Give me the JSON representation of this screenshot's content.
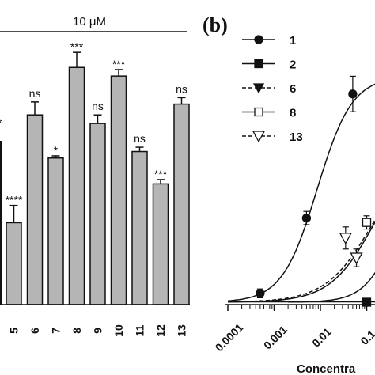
{
  "chart_data": [
    {
      "type": "bar",
      "header": "10 μM",
      "categories": [
        "5",
        "6",
        "7",
        "8",
        "9",
        "10",
        "11",
        "12",
        "13"
      ],
      "values": [
        38,
        88,
        68,
        110,
        84,
        106,
        71,
        56,
        93
      ],
      "errors": [
        8,
        6,
        1,
        7,
        4,
        3,
        2,
        2,
        3
      ],
      "significance": [
        "****",
        "ns",
        "*",
        "***",
        "ns",
        "***",
        "ns",
        "***",
        "ns"
      ],
      "truncated_label": "*",
      "ylim": [
        0,
        120
      ],
      "bar_color": "#b5b5b5"
    },
    {
      "type": "line",
      "panel_label": "(b)",
      "xscale": "log",
      "xlim": [
        0.0001,
        0.2
      ],
      "xticks": [
        "0.0001",
        "0.001",
        "0.01",
        "0.1"
      ],
      "xlabel": "Concentra",
      "ylim": [
        0,
        100
      ],
      "legend": {
        "placement": "top-right",
        "entries": [
          {
            "label": "1",
            "marker": "circle-filled",
            "line": "solid"
          },
          {
            "label": "2",
            "marker": "square-filled",
            "line": "solid"
          },
          {
            "label": "6",
            "marker": "triangle-down-filled",
            "line": "dashed"
          },
          {
            "label": "8",
            "marker": "square-open",
            "line": "solid"
          },
          {
            "label": "13",
            "marker": "triangle-down-open",
            "line": "dashed"
          }
        ]
      },
      "series": [
        {
          "name": "1",
          "x": [
            0.0005,
            0.005,
            0.05
          ],
          "y": [
            4,
            38,
            94
          ],
          "err": [
            2,
            3,
            8
          ]
        },
        {
          "name": "2",
          "x": [
            0.1
          ],
          "y": [
            0
          ],
          "err": [
            0
          ]
        },
        {
          "name": "8",
          "x": [
            0.1
          ],
          "y": [
            36
          ],
          "err": [
            3
          ]
        },
        {
          "name": "13",
          "x": [
            0.035,
            0.06
          ],
          "y": [
            29,
            20
          ],
          "err": [
            5,
            4
          ]
        }
      ]
    }
  ]
}
